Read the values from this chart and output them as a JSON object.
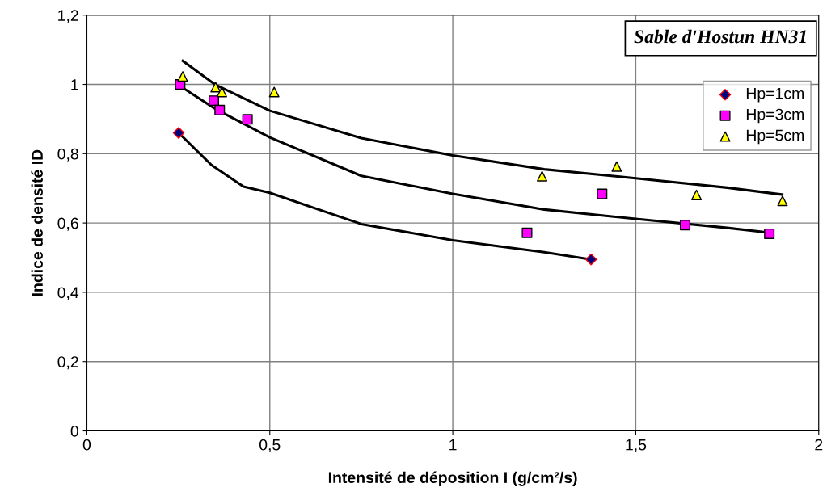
{
  "chart_data": {
    "type": "scatter",
    "title": "Sable d'Hostun HN31",
    "xlabel": "Intensité de déposition I (g/cm²/s)",
    "ylabel": "Indice de densité ID",
    "xlim": [
      0,
      2
    ],
    "xticks": [
      0,
      {
        "value": 0.5,
        "label": "0,5"
      },
      1,
      {
        "value": 1.5,
        "label": "1,5"
      },
      2
    ],
    "ylim": [
      0,
      1.2
    ],
    "yticks": [
      0,
      {
        "value": 0.2,
        "label": "0,2"
      },
      {
        "value": 0.4,
        "label": "0,4"
      },
      {
        "value": 0.6,
        "label": "0,6"
      },
      {
        "value": 0.8,
        "label": "0,8"
      },
      1,
      {
        "value": 1.2,
        "label": "1,2"
      }
    ],
    "grid": true,
    "legend": "top right",
    "series": [
      {
        "name": "Hp=1cm",
        "marker": "diamond",
        "color": "#000080",
        "x": [
          0.251,
          1.378
        ],
        "values": [
          0.86,
          0.495
        ]
      },
      {
        "name": "Hp=3cm",
        "marker": "square",
        "color": "#ff00ff",
        "x": [
          0.255,
          0.347,
          0.363,
          0.439,
          1.203,
          1.408,
          1.635,
          1.865
        ],
        "values": [
          1.0,
          0.953,
          0.926,
          0.899,
          0.572,
          0.684,
          0.594,
          0.569
        ]
      },
      {
        "name": "Hp=5cm",
        "marker": "triangle",
        "color": "#ffff00",
        "x": [
          0.262,
          0.352,
          0.369,
          0.512,
          1.244,
          1.448,
          1.666,
          1.901
        ],
        "values": [
          1.023,
          0.992,
          0.978,
          0.978,
          0.735,
          0.763,
          0.681,
          0.664
        ]
      },
      {
        "type": "line",
        "marker": "none",
        "color": "#000000",
        "x": [
          0.251,
          0.341,
          0.428,
          0.5,
          0.75,
          1.0,
          1.25,
          1.378
        ],
        "values": [
          0.86,
          0.767,
          0.705,
          0.687,
          0.597,
          0.55,
          0.516,
          0.495
        ]
      },
      {
        "type": "line",
        "marker": "none",
        "color": "#000000",
        "x": [
          0.255,
          0.35,
          0.5,
          0.75,
          1.0,
          1.25,
          1.5,
          1.75,
          1.865
        ],
        "values": [
          0.995,
          0.93,
          0.847,
          0.736,
          0.684,
          0.639,
          0.612,
          0.586,
          0.572
        ]
      },
      {
        "type": "line",
        "marker": "none",
        "color": "#000000",
        "x": [
          0.262,
          0.35,
          0.5,
          0.75,
          1.0,
          1.25,
          1.5,
          1.75,
          1.9
        ],
        "values": [
          1.068,
          1.0,
          0.924,
          0.845,
          0.795,
          0.755,
          0.729,
          0.702,
          0.682
        ]
      }
    ]
  }
}
